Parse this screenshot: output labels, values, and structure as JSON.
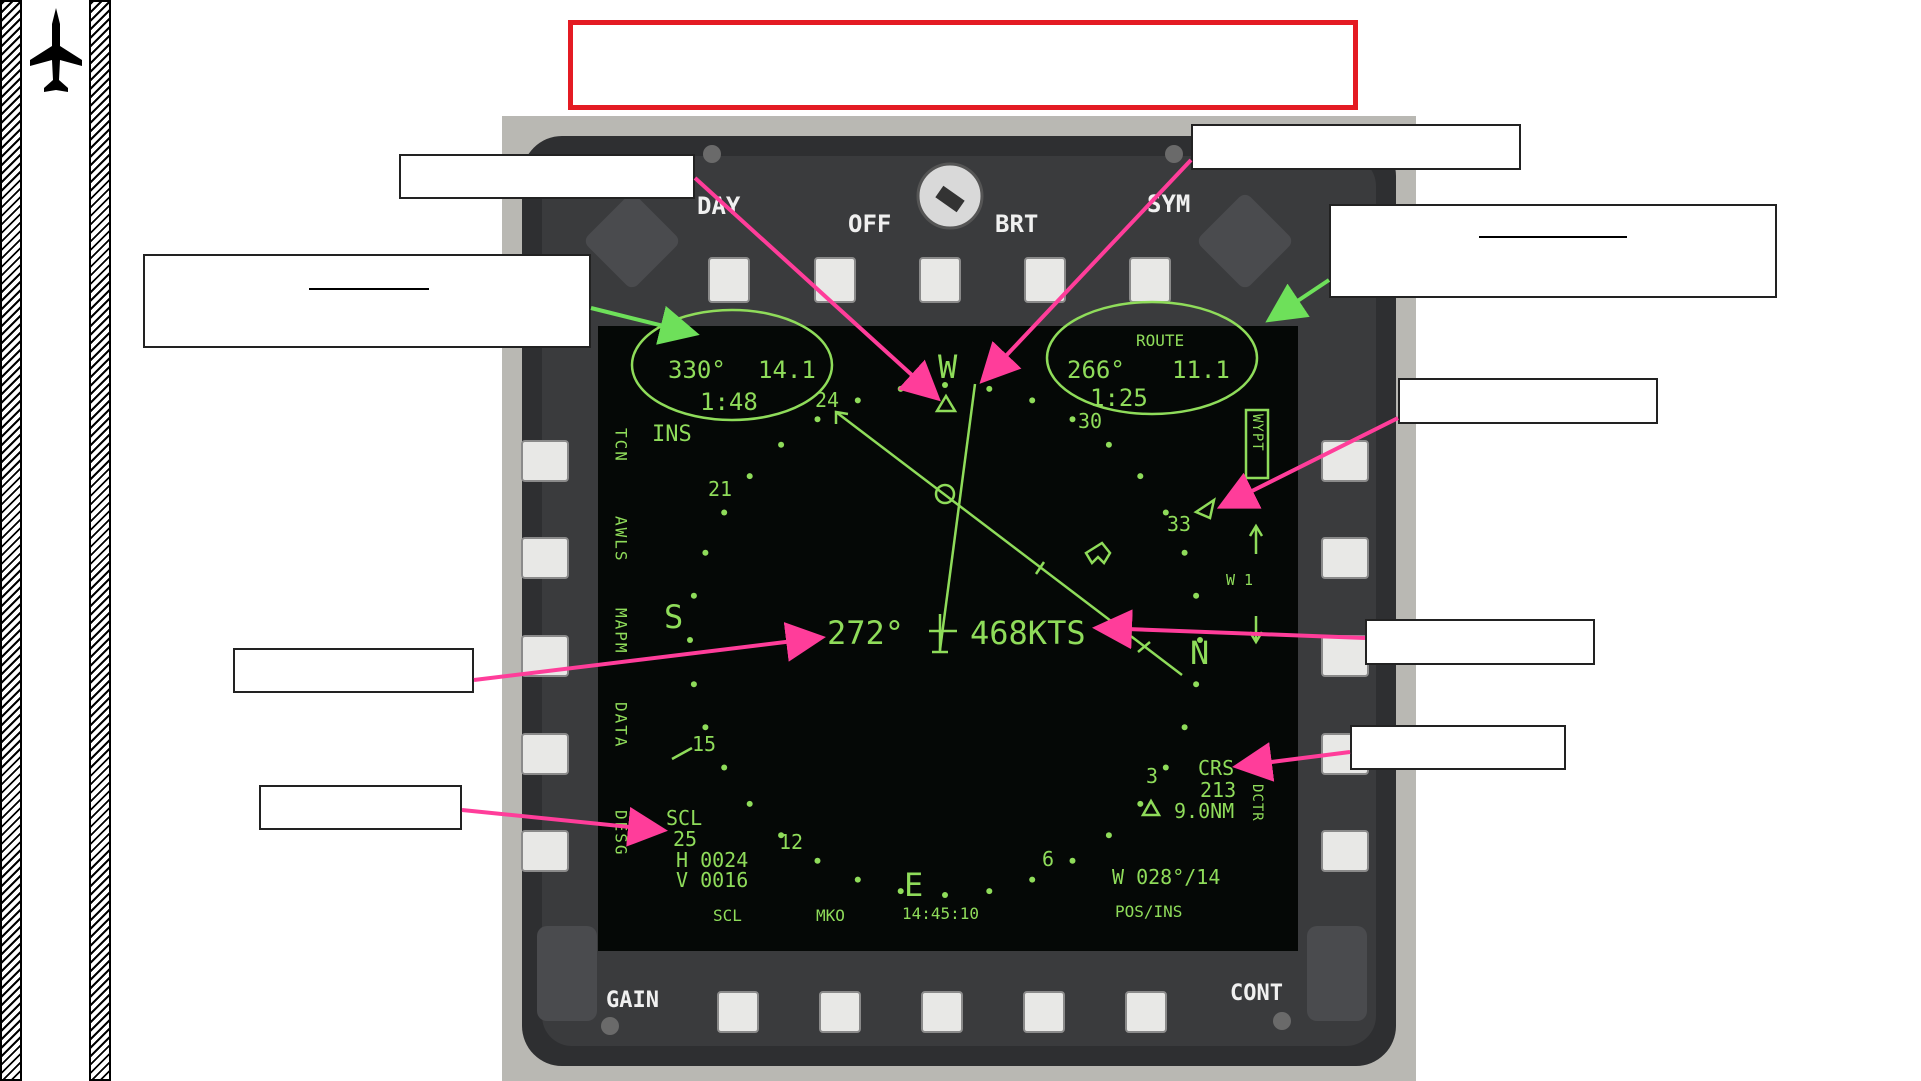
{
  "mfd": {
    "rocker_labels": {
      "day": "DAY",
      "off": "OFF",
      "brt": "BRT",
      "sym": "SYM",
      "gain": "GAIN",
      "cont": "CONT"
    },
    "left_info": {
      "bearing": "330°",
      "distance": "14.1",
      "time": "1:48"
    },
    "right_info": {
      "title": "ROUTE",
      "bearing": "266°",
      "distance": "11.1",
      "time": "1:25"
    },
    "compass": {
      "w": "W",
      "s": "S",
      "e": "E",
      "n": "N",
      "t24": "24",
      "t21": "21",
      "t15": "15",
      "t12": "12",
      "t6": "6",
      "t3": "3",
      "t33": "33",
      "t30": "30"
    },
    "nav_source": "INS",
    "heading_readout": "272°",
    "ground_speed": "468KTS",
    "course": {
      "label": "CRS",
      "value": "213",
      "distance": "9.0NM"
    },
    "scale": {
      "label": "SCL",
      "value": "25",
      "h": "H 0024",
      "v": "V 0016"
    },
    "wind": "W 028°/14",
    "waypoint": "W 1",
    "left_options": [
      "TCN",
      "AWLS",
      "MAPM",
      "DATA",
      "DESG"
    ],
    "right_options": [
      "WYPT",
      "DCTR"
    ],
    "bottom_options": {
      "scl": "SCL",
      "mko": "MKO",
      "time": "14:45:10",
      "pos": "POS/INS"
    }
  },
  "colors": {
    "symbology": "#8fdc5a",
    "title_border": "#e41b23",
    "pink_arrow": "#ff3d9a",
    "green_arrow": "#6ee05a"
  }
}
